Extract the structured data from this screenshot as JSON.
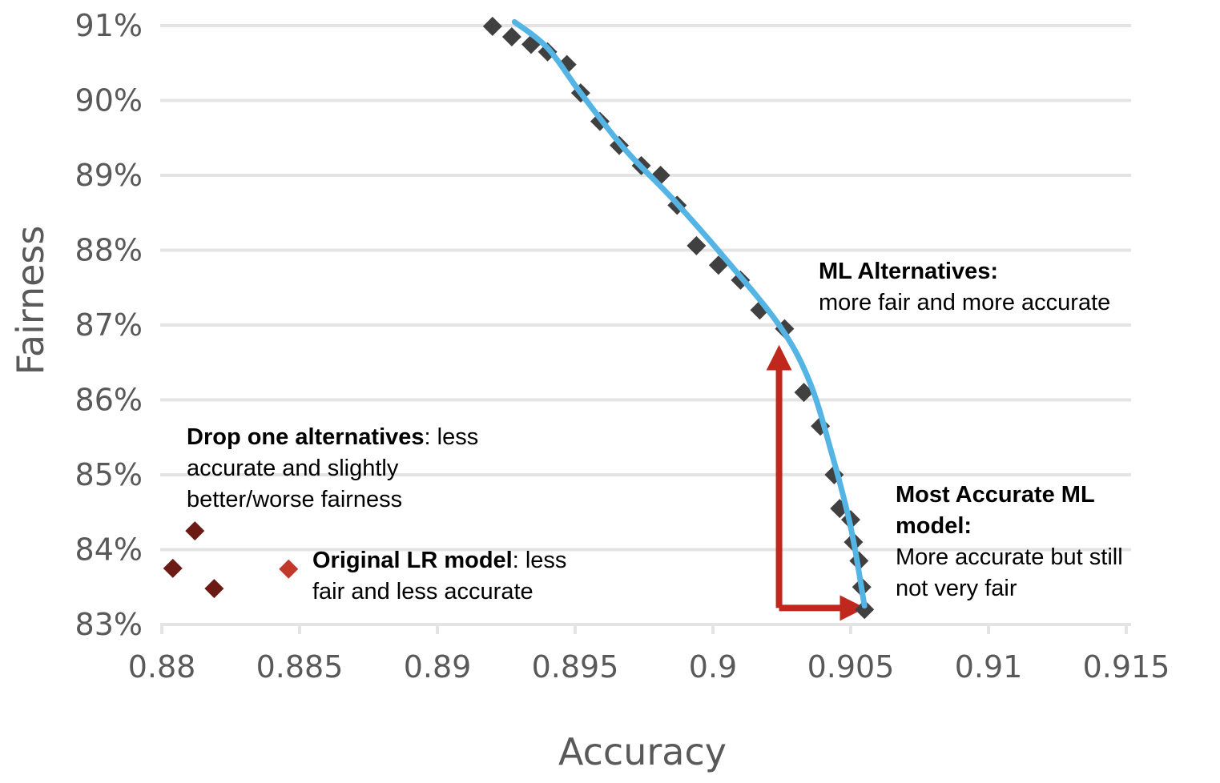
{
  "chart_data": {
    "type": "scatter",
    "xlabel": "Accuracy",
    "ylabel": "Fairness",
    "xlim": [
      0.88,
      0.915
    ],
    "ylim": [
      0.83,
      0.91
    ],
    "x_ticks": [
      0.88,
      0.885,
      0.89,
      0.895,
      0.9,
      0.905,
      0.91,
      0.915
    ],
    "x_tick_labels": [
      "0.88",
      "0.885",
      "0.89",
      "0.895",
      "0.9",
      "0.905",
      "0.91",
      "0.915"
    ],
    "y_ticks": [
      0.83,
      0.84,
      0.85,
      0.86,
      0.87,
      0.88,
      0.89,
      0.9,
      0.91
    ],
    "y_tick_labels": [
      "83%",
      "84%",
      "85%",
      "86%",
      "87%",
      "88%",
      "89%",
      "90%",
      "91%"
    ],
    "grid": "horizontal",
    "colors": {
      "ml_points": "#404040",
      "frontier_line": "#54b4e4",
      "drop_one_points": "#6b1a14",
      "original_point": "#c0392b",
      "arrow": "#c0281e",
      "grid": "#e4e4e4"
    },
    "series": [
      {
        "marker": "diamond",
        "points": [
          {
            "x": 0.892,
            "y": 0.9099
          },
          {
            "x": 0.8927,
            "y": 0.9085
          },
          {
            "x": 0.8934,
            "y": 0.9075
          },
          {
            "x": 0.894,
            "y": 0.9065
          },
          {
            "x": 0.8947,
            "y": 0.9048
          },
          {
            "x": 0.8952,
            "y": 0.901
          },
          {
            "x": 0.8959,
            "y": 0.8972
          },
          {
            "x": 0.8966,
            "y": 0.894
          },
          {
            "x": 0.8974,
            "y": 0.8913
          },
          {
            "x": 0.8981,
            "y": 0.89
          },
          {
            "x": 0.8987,
            "y": 0.886
          },
          {
            "x": 0.8994,
            "y": 0.8806
          },
          {
            "x": 0.9002,
            "y": 0.878
          },
          {
            "x": 0.901,
            "y": 0.876
          },
          {
            "x": 0.9017,
            "y": 0.872
          },
          {
            "x": 0.9026,
            "y": 0.8695
          },
          {
            "x": 0.9033,
            "y": 0.861
          },
          {
            "x": 0.9039,
            "y": 0.8565
          },
          {
            "x": 0.9044,
            "y": 0.85
          },
          {
            "x": 0.9046,
            "y": 0.8455
          },
          {
            "x": 0.905,
            "y": 0.844
          },
          {
            "x": 0.9051,
            "y": 0.841
          },
          {
            "x": 0.9053,
            "y": 0.8385
          },
          {
            "x": 0.9054,
            "y": 0.835
          },
          {
            "x": 0.9055,
            "y": 0.832
          }
        ]
      },
      {
        "type": "line",
        "points": [
          {
            "x": 0.8928,
            "y": 0.9105
          },
          {
            "x": 0.894,
            "y": 0.907
          },
          {
            "x": 0.8952,
            "y": 0.901
          },
          {
            "x": 0.8968,
            "y": 0.8935
          },
          {
            "x": 0.8985,
            "y": 0.887
          },
          {
            "x": 0.9003,
            "y": 0.8795
          },
          {
            "x": 0.9024,
            "y": 0.87
          },
          {
            "x": 0.9035,
            "y": 0.8625
          },
          {
            "x": 0.9043,
            "y": 0.853
          },
          {
            "x": 0.905,
            "y": 0.843
          },
          {
            "x": 0.9055,
            "y": 0.8325
          }
        ]
      },
      {
        "marker": "diamond",
        "points": [
          {
            "x": 0.8812,
            "y": 0.8425
          },
          {
            "x": 0.8804,
            "y": 0.8375
          },
          {
            "x": 0.8819,
            "y": 0.8348
          }
        ]
      },
      {
        "marker": "diamond",
        "points": [
          {
            "x": 0.8846,
            "y": 0.8374
          }
        ]
      }
    ],
    "arrows": [
      {
        "from": {
          "x": 0.9024,
          "y": 0.8322
        },
        "to": {
          "x": 0.9024,
          "y": 0.8665
        }
      },
      {
        "from": {
          "x": 0.9024,
          "y": 0.8322
        },
        "to": {
          "x": 0.9053,
          "y": 0.8322
        }
      }
    ],
    "annotations": [
      {
        "bold": "ML Alternatives:",
        "lines": [
          "more fair and more accurate"
        ]
      },
      {
        "bold": "Most Accurate ML",
        "lines": [
          "model:",
          "More accurate but still",
          "not very fair"
        ]
      },
      {
        "bold": "Drop one alternatives",
        "rest": ": less",
        "lines": [
          "accurate and slightly",
          "better/worse fairness"
        ]
      },
      {
        "bold": "Original LR model",
        "rest": ": less",
        "lines": [
          "fair and less accurate"
        ]
      }
    ]
  }
}
